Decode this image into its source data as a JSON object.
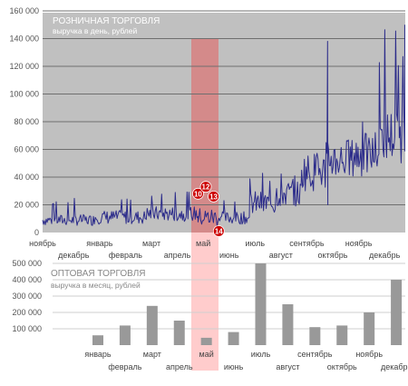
{
  "chart_data": [
    {
      "type": "line",
      "title": "РОЗНИЧНАЯ ТОРГОВЛЯ",
      "subtitle": "выручка в день, рублей",
      "ylim": [
        0,
        150000
      ],
      "y_ticks": [
        "0",
        "20 000",
        "40 000",
        "60 000",
        "80 000",
        "100 000",
        "120 000",
        "140 000",
        "160 000"
      ],
      "months": [
        {
          "label": "ноябрь",
          "row": 1
        },
        {
          "label": "декабрь",
          "row": 2
        },
        {
          "label": "январь",
          "row": 1
        },
        {
          "label": "февраль",
          "row": 2
        },
        {
          "label": "март",
          "row": 1
        },
        {
          "label": "апрель",
          "row": 2
        },
        {
          "label": "май",
          "row": 1
        },
        {
          "label": "июнь",
          "row": 2
        },
        {
          "label": "июль",
          "row": 1
        },
        {
          "label": "август",
          "row": 2
        },
        {
          "label": "сентябрь",
          "row": 1
        },
        {
          "label": "октябрь",
          "row": 2
        },
        {
          "label": "ноябрь",
          "row": 1
        },
        {
          "label": "декабрь",
          "row": 2
        }
      ],
      "highlight_month": "май",
      "grid": true,
      "series": [
        {
          "color": "#2b2b8a",
          "segments": [
            {
              "month_start": 0,
              "month_end": 2,
              "low": 5000,
              "high": 13000,
              "peak": 25000
            },
            {
              "month_start": 2,
              "month_end": 4,
              "low": 6000,
              "high": 16000,
              "peak": 26000
            },
            {
              "month_start": 4,
              "month_end": 6,
              "low": 8000,
              "high": 19000,
              "peak": 30000
            },
            {
              "month_start": 6,
              "month_end": 7,
              "low": 4000,
              "high": 18000,
              "peak": 26000
            },
            {
              "month_start": 7,
              "month_end": 8,
              "low": 6000,
              "high": 15000,
              "peak": 24000
            },
            {
              "month_start": 8,
              "month_end": 9,
              "low": 12000,
              "high": 30000,
              "peak": 45000
            },
            {
              "month_start": 9,
              "month_end": 10,
              "low": 18000,
              "high": 38000,
              "peak": 48000
            },
            {
              "month_start": 10,
              "month_end": 11,
              "low": 30000,
              "high": 58000,
              "peak": 70000
            },
            {
              "month_start": 11,
              "month_end": 12,
              "low": 38000,
              "high": 68000,
              "peak": 80000
            },
            {
              "month_start": 12,
              "month_end": 13,
              "low": 40000,
              "high": 72000,
              "peak": 90000
            },
            {
              "month_start": 13,
              "month_end": 14,
              "low": 50000,
              "high": 90000,
              "peak": 150000
            }
          ],
          "spikes": [
            {
              "month": 11.0,
              "value": 138000
            }
          ]
        }
      ],
      "annotations": [
        {
          "label": "10",
          "month": 6.0,
          "value": 28000
        },
        {
          "label": "12",
          "month": 6.3,
          "value": 33000
        },
        {
          "label": "13",
          "month": 6.6,
          "value": 26000
        },
        {
          "label": "14",
          "month": 6.8,
          "value": 1000
        }
      ]
    },
    {
      "type": "bar",
      "title": "ОПТОВАЯ ТОРГОВЛЯ",
      "subtitle": "выручка в месяц, рублей",
      "ylim": [
        0,
        500000
      ],
      "y_ticks": [
        "100 000",
        "200 000",
        "300 000",
        "400 000",
        "500 000"
      ],
      "categories": [
        "январь",
        "февраль",
        "март",
        "апрель",
        "май",
        "июнь",
        "июль",
        "август",
        "сентябрь",
        "октябрь",
        "ноябрь",
        "декабрь"
      ],
      "label_rows": [
        1,
        2,
        1,
        2,
        1,
        2,
        1,
        2,
        1,
        2,
        1,
        2
      ],
      "values": [
        60000,
        120000,
        240000,
        150000,
        45000,
        80000,
        550000,
        250000,
        110000,
        120000,
        200000,
        400000
      ],
      "highlight": "май",
      "color": "#999999"
    }
  ],
  "colors": {
    "line_panel_bg": "#c0c0c0",
    "bar_panel_bg": "#ffffff",
    "highlight_dark": "#d48a8a",
    "highlight_light": "#ffcccc",
    "line": "#2b2b8a",
    "marker": "#cc0000"
  }
}
